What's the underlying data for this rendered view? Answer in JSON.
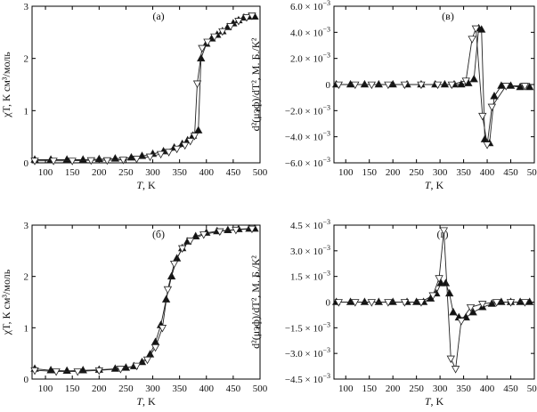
{
  "figure": {
    "tick_label_exponent_prefix": "× 10",
    "marker_styles": {
      "open": "open-down-triangle",
      "filled": "filled-up-triangle"
    },
    "colors": {
      "line": "#222222",
      "filled_marker": "#111111",
      "open_marker_fill": "#ffffff",
      "axis": "#000000"
    }
  },
  "chart_data": [
    {
      "id": "a",
      "type": "scatter",
      "panel_label": "(а)",
      "xlabel_italic": "T",
      "xlabel_unit": ", K",
      "ylabel": "χT, К см³/моль",
      "xlim": [
        75,
        500
      ],
      "ylim": [
        0,
        3
      ],
      "x_ticks": [
        "100",
        "150",
        "200",
        "250",
        "300",
        "350",
        "400",
        "450",
        "500"
      ],
      "y_ticks": [
        "0",
        "1",
        "2",
        "3"
      ],
      "series": [
        {
          "marker": "filled-up-triangle",
          "x": [
            80,
            110,
            140,
            170,
            200,
            230,
            260,
            280,
            300,
            320,
            340,
            355,
            365,
            375,
            385,
            390,
            400,
            410,
            420,
            430,
            440,
            450,
            460,
            470,
            480,
            490
          ],
          "y": [
            0.06,
            0.06,
            0.06,
            0.06,
            0.07,
            0.08,
            0.1,
            0.13,
            0.17,
            0.22,
            0.29,
            0.36,
            0.43,
            0.52,
            0.62,
            2.0,
            2.28,
            2.38,
            2.45,
            2.52,
            2.6,
            2.67,
            2.73,
            2.78,
            2.8,
            2.8
          ]
        },
        {
          "marker": "open-down-triangle",
          "x": [
            80,
            115,
            150,
            185,
            215,
            245,
            270,
            295,
            315,
            330,
            345,
            360,
            370,
            378,
            383,
            392,
            402,
            415,
            430,
            445,
            460,
            475,
            485
          ],
          "y": [
            0.04,
            0.04,
            0.04,
            0.05,
            0.05,
            0.06,
            0.08,
            0.12,
            0.17,
            0.21,
            0.27,
            0.34,
            0.42,
            0.52,
            1.52,
            2.2,
            2.32,
            2.42,
            2.52,
            2.62,
            2.72,
            2.79,
            2.82
          ]
        }
      ]
    },
    {
      "id": "v",
      "type": "scatter",
      "panel_label": "(в)",
      "xlabel_italic": "T",
      "xlabel_unit": ", K",
      "ylabel": "d²(μэф)/dT², М. Б./К²",
      "xlim": [
        75,
        500
      ],
      "ylim": [
        -0.006,
        0.006
      ],
      "x_ticks": [
        "100",
        "150",
        "200",
        "250",
        "300",
        "350",
        "400",
        "450",
        "500"
      ],
      "y_ticks": [
        {
          "v": 0.006,
          "mant": "6.0",
          "exp": "−3"
        },
        {
          "v": 0.004,
          "mant": "4.0",
          "exp": "−3"
        },
        {
          "v": 0.002,
          "mant": "2.0",
          "exp": "−3"
        },
        {
          "v": 0,
          "mant": "0",
          "exp": ""
        },
        {
          "v": -0.002,
          "mant": "−2.0",
          "exp": "−3"
        },
        {
          "v": -0.004,
          "mant": "−4.0",
          "exp": "−3"
        },
        {
          "v": -0.006,
          "mant": "−6.0",
          "exp": "−3"
        }
      ],
      "series": [
        {
          "marker": "filled-up-triangle",
          "x": [
            80,
            110,
            140,
            170,
            200,
            230,
            260,
            290,
            310,
            330,
            345,
            360,
            372,
            382,
            388,
            395,
            405,
            415,
            430,
            450,
            470,
            490
          ],
          "y": [
            0.0,
            0.0,
            0.0,
            0.0,
            0.0,
            0.0,
            0.0,
            0.0,
            0.0,
            0.0,
            0.0,
            0.0001,
            0.0004,
            0.0043,
            0.0042,
            -0.0042,
            -0.0045,
            -0.0009,
            -0.0001,
            -0.0001,
            -0.0002,
            -0.0002
          ]
        },
        {
          "marker": "open-down-triangle",
          "x": [
            85,
            120,
            155,
            190,
            225,
            260,
            295,
            325,
            355,
            368,
            376,
            390,
            400,
            410,
            440,
            480
          ],
          "y": [
            0.0,
            0.0,
            0.0,
            0.0,
            0.0,
            0.0,
            0.0,
            0.0,
            0.0003,
            0.0035,
            0.0043,
            -0.0024,
            -0.0046,
            -0.0017,
            -0.0001,
            -0.0001
          ]
        }
      ]
    },
    {
      "id": "b",
      "type": "scatter",
      "panel_label": "(б)",
      "xlabel_italic": "T",
      "xlabel_unit": ", K",
      "ylabel": "χT, К см³/моль",
      "xlim": [
        75,
        500
      ],
      "ylim": [
        0,
        3
      ],
      "x_ticks": [
        "100",
        "150",
        "200",
        "250",
        "300",
        "350",
        "400",
        "450",
        "500"
      ],
      "y_ticks": [
        "0",
        "1",
        "2",
        "3"
      ],
      "series": [
        {
          "marker": "filled-up-triangle",
          "x": [
            80,
            110,
            140,
            170,
            200,
            230,
            250,
            265,
            280,
            295,
            305,
            315,
            325,
            335,
            345,
            355,
            365,
            380,
            400,
            420,
            440,
            460,
            480,
            490
          ],
          "y": [
            0.2,
            0.17,
            0.16,
            0.17,
            0.18,
            0.2,
            0.22,
            0.25,
            0.33,
            0.48,
            0.72,
            1.05,
            1.55,
            2.0,
            2.35,
            2.55,
            2.68,
            2.78,
            2.85,
            2.88,
            2.9,
            2.92,
            2.93,
            2.93
          ]
        },
        {
          "marker": "open-down-triangle",
          "x": [
            80,
            120,
            160,
            200,
            240,
            270,
            290,
            305,
            318,
            328,
            340,
            355,
            370,
            395,
            425,
            455,
            485
          ],
          "y": [
            0.17,
            0.15,
            0.15,
            0.17,
            0.2,
            0.26,
            0.38,
            0.62,
            1.0,
            1.75,
            2.25,
            2.55,
            2.7,
            2.82,
            2.88,
            2.91,
            2.93
          ]
        }
      ]
    },
    {
      "id": "g",
      "type": "scatter",
      "panel_label": "(г)",
      "xlabel_italic": "T",
      "xlabel_unit": ", K",
      "ylabel": "d²(μэф)/dT², М. Б./К²",
      "xlim": [
        75,
        500
      ],
      "ylim": [
        -0.0045,
        0.0045
      ],
      "x_ticks": [
        "100",
        "150",
        "200",
        "250",
        "300",
        "350",
        "400",
        "450",
        "500"
      ],
      "y_ticks": [
        {
          "v": 0.0045,
          "mant": "4.5",
          "exp": "−3"
        },
        {
          "v": 0.003,
          "mant": "3.0",
          "exp": "−3"
        },
        {
          "v": 0.0015,
          "mant": "1.5",
          "exp": "−3"
        },
        {
          "v": 0,
          "mant": "0",
          "exp": ""
        },
        {
          "v": -0.0015,
          "mant": "−1.5",
          "exp": "−3"
        },
        {
          "v": -0.003,
          "mant": "−3.0",
          "exp": "−3"
        },
        {
          "v": -0.0045,
          "mant": "−4.5",
          "exp": "−3"
        }
      ],
      "series": [
        {
          "marker": "filled-up-triangle",
          "x": [
            80,
            110,
            140,
            170,
            200,
            230,
            250,
            265,
            280,
            292,
            302,
            312,
            320,
            328,
            340,
            355,
            370,
            390,
            410,
            430,
            450,
            470,
            490
          ],
          "y": [
            0.0,
            0.0,
            0.0,
            0.0,
            0.0,
            0.0,
            0.0,
            0.0,
            0.0002,
            0.0005,
            0.0011,
            0.0011,
            0.0005,
            -0.0006,
            -0.0009,
            -0.0009,
            -0.0006,
            -0.0003,
            -0.0001,
            0.0,
            0.0,
            0.0,
            0.0
          ]
        },
        {
          "marker": "open-down-triangle",
          "x": [
            85,
            120,
            155,
            190,
            225,
            260,
            285,
            298,
            308,
            323,
            333,
            345,
            365,
            390,
            420,
            450,
            480
          ],
          "y": [
            0.0,
            0.0,
            0.0,
            0.0,
            0.0,
            0.0,
            0.0004,
            0.0014,
            0.0042,
            -0.0033,
            -0.0039,
            -0.0011,
            -0.0003,
            -0.0001,
            0.0,
            0.0,
            0.0
          ]
        }
      ]
    }
  ]
}
